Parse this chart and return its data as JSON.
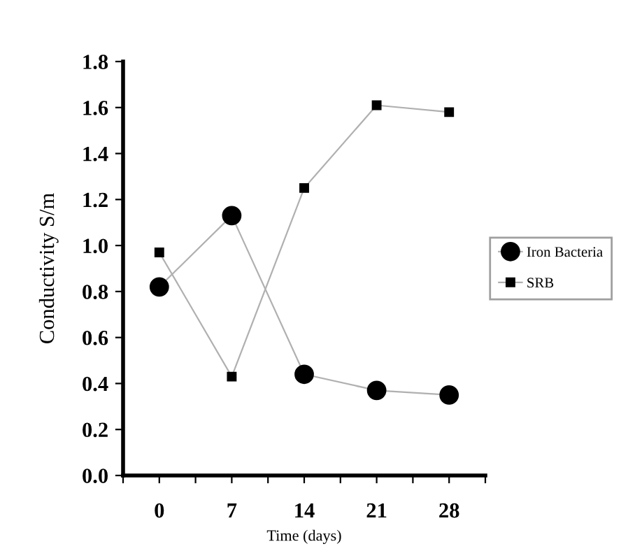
{
  "chart_data": {
    "type": "line",
    "xlabel": "Time (days)",
    "ylabel": "Conductivity S/m",
    "x": [
      0,
      7,
      14,
      21,
      28
    ],
    "series": [
      {
        "name": "Iron Bacteria",
        "color": "#000000",
        "marker": "circle",
        "values": [
          0.82,
          1.13,
          0.44,
          0.37,
          0.35
        ]
      },
      {
        "name": "SRB",
        "color": "#000000",
        "marker": "square",
        "values": [
          0.97,
          0.43,
          1.25,
          1.61,
          1.58
        ]
      }
    ],
    "xlim": [
      -3.5,
      31.5
    ],
    "xticks": [
      {
        "value": -3.5,
        "label": null
      },
      0,
      {
        "value": 3.5,
        "label": null
      },
      7,
      {
        "value": 10.5,
        "label": null
      },
      14,
      {
        "value": 17.5,
        "label": null
      },
      21,
      {
        "value": 24.5,
        "label": null
      },
      28,
      {
        "value": 31.5,
        "label": null
      }
    ],
    "ylim": [
      0,
      1.8
    ],
    "yticks": [
      {
        "value": 0,
        "label": "0.0"
      },
      {
        "value": 0.2,
        "label": "0.2"
      },
      {
        "value": 0.4,
        "label": "0.4"
      },
      {
        "value": 0.6,
        "label": "0.6"
      },
      {
        "value": 0.8,
        "label": "0.8"
      },
      {
        "value": 1.0,
        "label": "1.0"
      },
      {
        "value": 1.2,
        "label": "1.2"
      },
      {
        "value": 1.4,
        "label": "1.4"
      },
      {
        "value": 1.6,
        "label": "1.6"
      },
      {
        "value": 1.8,
        "label": "1.8"
      }
    ],
    "grid": false,
    "legend": "right"
  }
}
